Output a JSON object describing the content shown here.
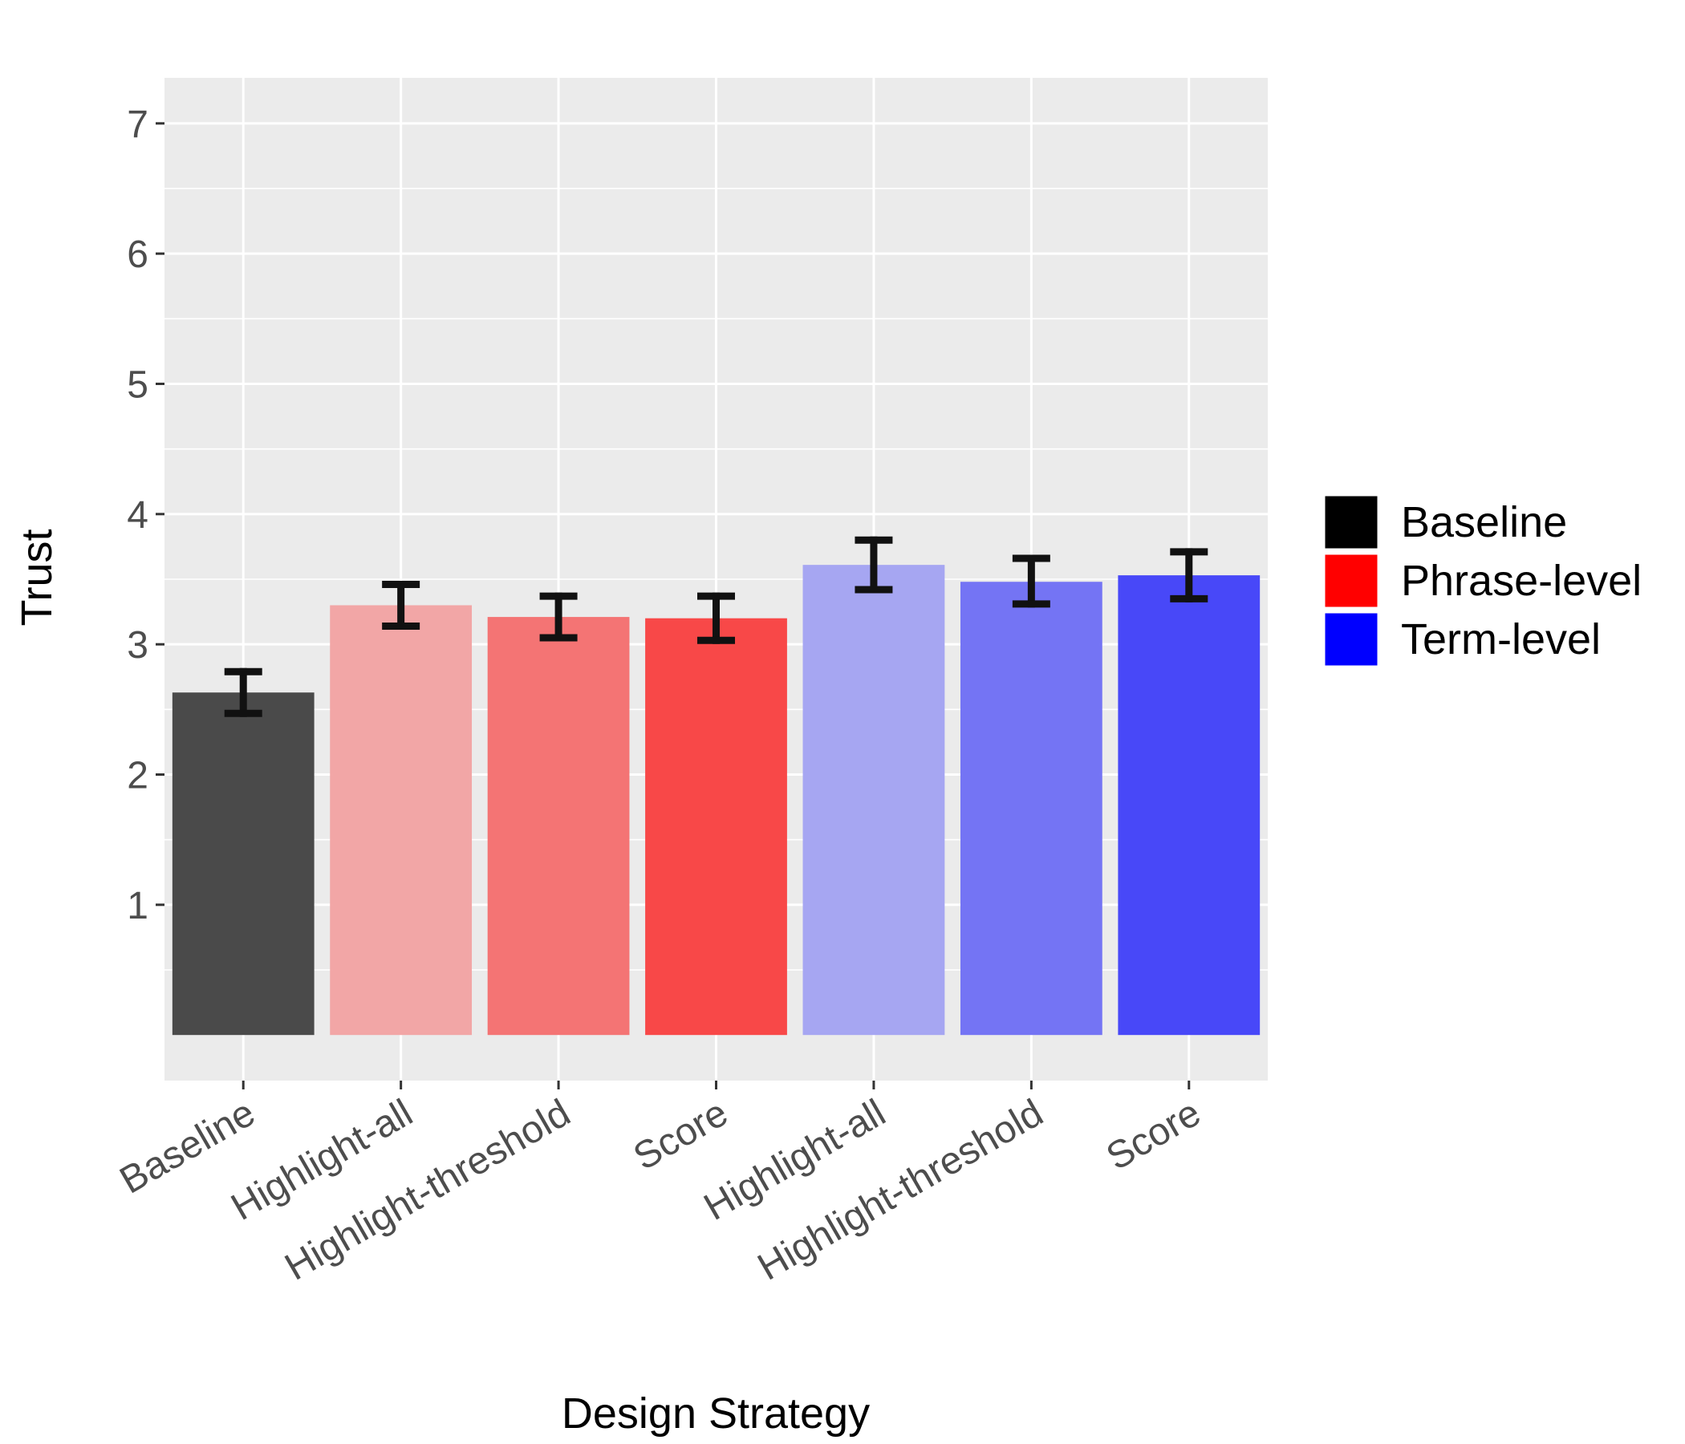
{
  "chart_data": {
    "type": "bar",
    "title": "",
    "xlabel": "Design Strategy",
    "ylabel": "Trust",
    "ylim": [
      -0.35,
      7.35
    ],
    "yticks": [
      1,
      2,
      3,
      4,
      5,
      6,
      7
    ],
    "categories": [
      "Baseline",
      "Highlight-all",
      "Highlight-threshold",
      "Score",
      "Highlight-all",
      "Highlight-threshold",
      "Score"
    ],
    "values": [
      2.63,
      3.3,
      3.21,
      3.2,
      3.61,
      3.48,
      3.53
    ],
    "error_low": [
      2.47,
      3.14,
      3.05,
      3.03,
      3.42,
      3.31,
      3.35
    ],
    "error_high": [
      2.79,
      3.46,
      3.37,
      3.37,
      3.8,
      3.66,
      3.71
    ],
    "groups": [
      "Baseline",
      "Phrase-level",
      "Phrase-level",
      "Phrase-level",
      "Term-level",
      "Term-level",
      "Term-level"
    ],
    "bar_colors": [
      "#4a4a4a",
      "#f2a6a6",
      "#f47474",
      "#f84848",
      "#a6a6f2",
      "#7474f4",
      "#4848f8"
    ],
    "grid": true,
    "legend": {
      "position": "right",
      "entries": [
        {
          "label": "Baseline",
          "color": "#000000"
        },
        {
          "label": "Phrase-level",
          "color": "#ff0000"
        },
        {
          "label": "Term-level",
          "color": "#0000ff"
        }
      ]
    },
    "panel_background": "#ebebeb",
    "grid_color": "#ffffff",
    "errorbar_color": "#111111"
  }
}
